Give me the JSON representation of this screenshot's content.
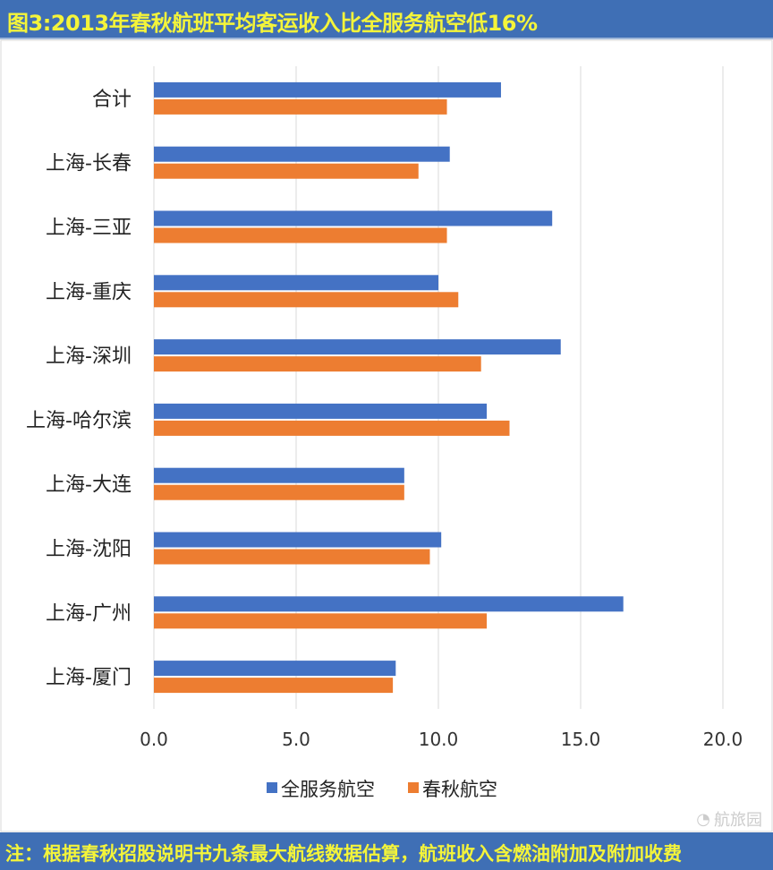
{
  "title": "图3:2013年春秋航班平均客运收入比全服务航空低16%",
  "footer": "注：根据春秋招股说明书九条最大航线数据估算，航班收入含燃油附加及附加收费",
  "watermark": "航旅园",
  "chart_data": {
    "type": "bar",
    "orientation": "horizontal",
    "categories": [
      "合计",
      "上海-长春",
      "上海-三亚",
      "上海-重庆",
      "上海-深圳",
      "上海-哈尔滨",
      "上海-大连",
      "上海-沈阳",
      "上海-广州",
      "上海-厦门"
    ],
    "series": [
      {
        "name": "全服务航空",
        "color": "#4472c4",
        "values": [
          12.2,
          10.4,
          14.0,
          10.0,
          14.3,
          11.7,
          8.8,
          10.1,
          16.5,
          8.5
        ]
      },
      {
        "name": "春秋航空",
        "color": "#ed7d31",
        "values": [
          10.3,
          9.3,
          10.3,
          10.7,
          11.5,
          12.5,
          8.8,
          9.7,
          11.7,
          8.4
        ]
      }
    ],
    "xlim": [
      0,
      20
    ],
    "xticks": [
      "0.0",
      "5.0",
      "10.0",
      "15.0",
      "20.0"
    ],
    "grid": true,
    "legend": "bottom"
  }
}
